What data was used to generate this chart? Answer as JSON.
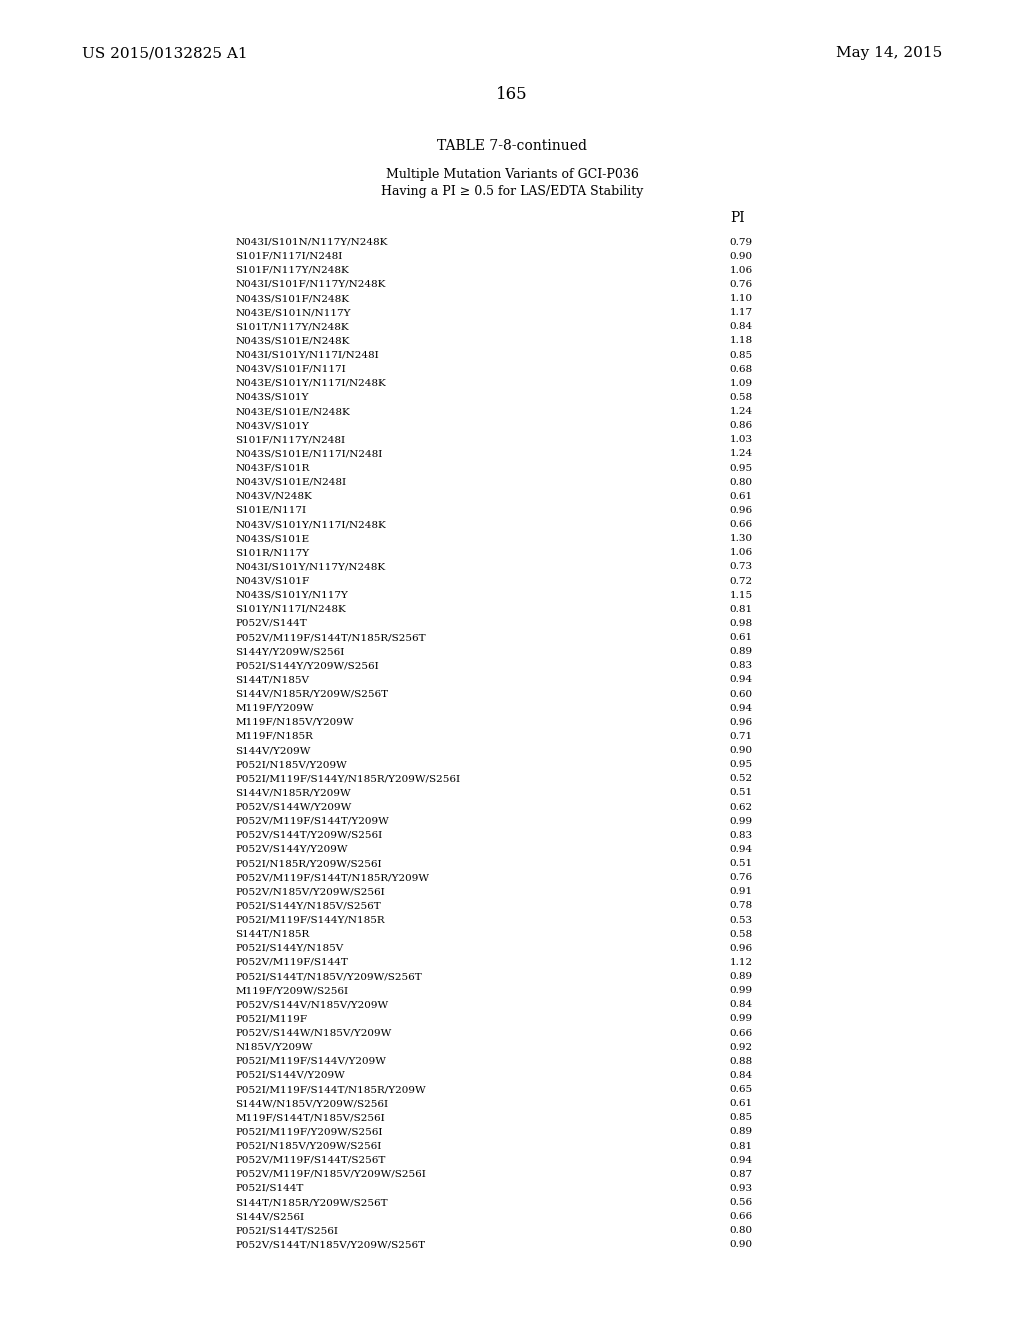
{
  "patent_number": "US 2015/0132825 A1",
  "patent_date": "May 14, 2015",
  "page_number": "165",
  "table_title": "TABLE 7-8-continued",
  "table_subtitle1": "Multiple Mutation Variants of GCI-P036",
  "table_subtitle2": "Having a PI ≥ 0.5 for LAS/EDTA Stability",
  "col_header": "PI",
  "rows": [
    [
      "N043I/S101N/N117Y/N248K",
      "0.79"
    ],
    [
      "S101F/N117I/N248I",
      "0.90"
    ],
    [
      "S101F/N117Y/N248K",
      "1.06"
    ],
    [
      "N043I/S101F/N117Y/N248K",
      "0.76"
    ],
    [
      "N043S/S101F/N248K",
      "1.10"
    ],
    [
      "N043E/S101N/N117Y",
      "1.17"
    ],
    [
      "S101T/N117Y/N248K",
      "0.84"
    ],
    [
      "N043S/S101E/N248K",
      "1.18"
    ],
    [
      "N043I/S101Y/N117I/N248I",
      "0.85"
    ],
    [
      "N043V/S101F/N117I",
      "0.68"
    ],
    [
      "N043E/S101Y/N117I/N248K",
      "1.09"
    ],
    [
      "N043S/S101Y",
      "0.58"
    ],
    [
      "N043E/S101E/N248K",
      "1.24"
    ],
    [
      "N043V/S101Y",
      "0.86"
    ],
    [
      "S101F/N117Y/N248I",
      "1.03"
    ],
    [
      "N043S/S101E/N117I/N248I",
      "1.24"
    ],
    [
      "N043F/S101R",
      "0.95"
    ],
    [
      "N043V/S101E/N248I",
      "0.80"
    ],
    [
      "N043V/N248K",
      "0.61"
    ],
    [
      "S101E/N117I",
      "0.96"
    ],
    [
      "N043V/S101Y/N117I/N248K",
      "0.66"
    ],
    [
      "N043S/S101E",
      "1.30"
    ],
    [
      "S101R/N117Y",
      "1.06"
    ],
    [
      "N043I/S101Y/N117Y/N248K",
      "0.73"
    ],
    [
      "N043V/S101F",
      "0.72"
    ],
    [
      "N043S/S101Y/N117Y",
      "1.15"
    ],
    [
      "S101Y/N117I/N248K",
      "0.81"
    ],
    [
      "P052V/S144T",
      "0.98"
    ],
    [
      "P052V/M119F/S144T/N185R/S256T",
      "0.61"
    ],
    [
      "S144Y/Y209W/S256I",
      "0.89"
    ],
    [
      "P052I/S144Y/Y209W/S256I",
      "0.83"
    ],
    [
      "S144T/N185V",
      "0.94"
    ],
    [
      "S144V/N185R/Y209W/S256T",
      "0.60"
    ],
    [
      "M119F/Y209W",
      "0.94"
    ],
    [
      "M119F/N185V/Y209W",
      "0.96"
    ],
    [
      "M119F/N185R",
      "0.71"
    ],
    [
      "S144V/Y209W",
      "0.90"
    ],
    [
      "P052I/N185V/Y209W",
      "0.95"
    ],
    [
      "P052I/M119F/S144Y/N185R/Y209W/S256I",
      "0.52"
    ],
    [
      "S144V/N185R/Y209W",
      "0.51"
    ],
    [
      "P052V/S144W/Y209W",
      "0.62"
    ],
    [
      "P052V/M119F/S144T/Y209W",
      "0.99"
    ],
    [
      "P052V/S144T/Y209W/S256I",
      "0.83"
    ],
    [
      "P052V/S144Y/Y209W",
      "0.94"
    ],
    [
      "P052I/N185R/Y209W/S256I",
      "0.51"
    ],
    [
      "P052V/M119F/S144T/N185R/Y209W",
      "0.76"
    ],
    [
      "P052V/N185V/Y209W/S256I",
      "0.91"
    ],
    [
      "P052I/S144Y/N185V/S256T",
      "0.78"
    ],
    [
      "P052I/M119F/S144Y/N185R",
      "0.53"
    ],
    [
      "S144T/N185R",
      "0.58"
    ],
    [
      "P052I/S144Y/N185V",
      "0.96"
    ],
    [
      "P052V/M119F/S144T",
      "1.12"
    ],
    [
      "P052I/S144T/N185V/Y209W/S256T",
      "0.89"
    ],
    [
      "M119F/Y209W/S256I",
      "0.99"
    ],
    [
      "P052V/S144V/N185V/Y209W",
      "0.84"
    ],
    [
      "P052I/M119F",
      "0.99"
    ],
    [
      "P052V/S144W/N185V/Y209W",
      "0.66"
    ],
    [
      "N185V/Y209W",
      "0.92"
    ],
    [
      "P052I/M119F/S144V/Y209W",
      "0.88"
    ],
    [
      "P052I/S144V/Y209W",
      "0.84"
    ],
    [
      "P052I/M119F/S144T/N185R/Y209W",
      "0.65"
    ],
    [
      "S144W/N185V/Y209W/S256I",
      "0.61"
    ],
    [
      "M119F/S144T/N185V/S256I",
      "0.85"
    ],
    [
      "P052I/M119F/Y209W/S256I",
      "0.89"
    ],
    [
      "P052I/N185V/Y209W/S256I",
      "0.81"
    ],
    [
      "P052V/M119F/S144T/S256T",
      "0.94"
    ],
    [
      "P052V/M119F/N185V/Y209W/S256I",
      "0.87"
    ],
    [
      "P052I/S144T",
      "0.93"
    ],
    [
      "S144T/N185R/Y209W/S256T",
      "0.56"
    ],
    [
      "S144V/S256I",
      "0.66"
    ],
    [
      "P052I/S144T/S256I",
      "0.80"
    ],
    [
      "P052V/S144T/N185V/Y209W/S256T",
      "0.90"
    ]
  ]
}
